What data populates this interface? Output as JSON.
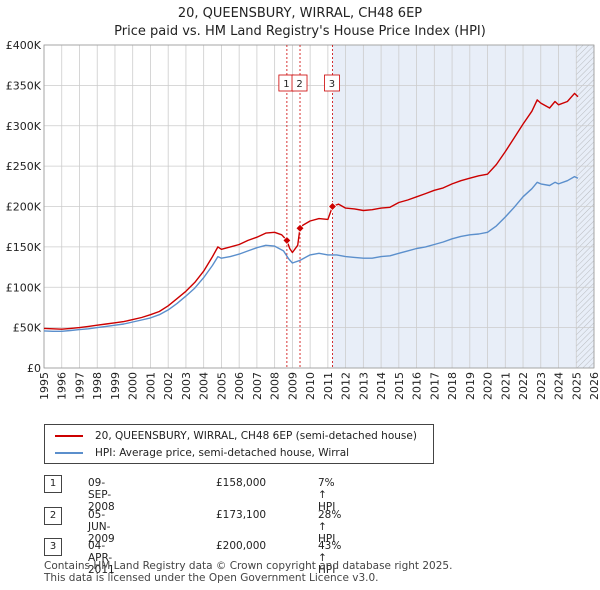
{
  "title_line1": "20, QUEENSBURY, WIRRAL, CH48 6EP",
  "title_line2": "Price paid vs. HM Land Registry's House Price Index (HPI)",
  "colors": {
    "property": "#cc0000",
    "hpi": "#5b8fcc",
    "grid": "#cccccc",
    "shade": "#e8eef8",
    "marker_line": "#cc0000",
    "hatch": "#999999"
  },
  "chart_data": {
    "type": "line",
    "title": "Price paid vs. HM Land Registry's House Price Index (HPI)",
    "xlim": [
      1995,
      2026
    ],
    "ylim": [
      0,
      400000
    ],
    "yticks": [
      {
        "value": 0,
        "label": "£0"
      },
      {
        "value": 50000,
        "label": "£50K"
      },
      {
        "value": 100000,
        "label": "£100K"
      },
      {
        "value": 150000,
        "label": "£150K"
      },
      {
        "value": 200000,
        "label": "£200K"
      },
      {
        "value": 250000,
        "label": "£250K"
      },
      {
        "value": 300000,
        "label": "£300K"
      },
      {
        "value": 350000,
        "label": "£350K"
      },
      {
        "value": 400000,
        "label": "£400K"
      }
    ],
    "xticks": [
      "1995",
      "1996",
      "1997",
      "1998",
      "1999",
      "2000",
      "2001",
      "2002",
      "2003",
      "2004",
      "2005",
      "2006",
      "2007",
      "2008",
      "2009",
      "2010",
      "2011",
      "2012",
      "2013",
      "2014",
      "2015",
      "2016",
      "2017",
      "2018",
      "2019",
      "2020",
      "2021",
      "2022",
      "2023",
      "2024",
      "2025",
      "2026"
    ],
    "shaded_region": [
      2011.26,
      2026
    ],
    "hatched_from": 2025.0,
    "series": [
      {
        "name": "20, QUEENSBURY, WIRRAL, CH48 6EP (semi-detached house)",
        "color": "#cc0000",
        "points": [
          [
            1995.0,
            49000
          ],
          [
            1995.5,
            48500
          ],
          [
            1996.0,
            48000
          ],
          [
            1996.5,
            49000
          ],
          [
            1997.0,
            50000
          ],
          [
            1997.5,
            51500
          ],
          [
            1998.0,
            53000
          ],
          [
            1998.5,
            54500
          ],
          [
            1999.0,
            56000
          ],
          [
            1999.5,
            57500
          ],
          [
            2000.0,
            60000
          ],
          [
            2000.5,
            62500
          ],
          [
            2001.0,
            66000
          ],
          [
            2001.5,
            70000
          ],
          [
            2002.0,
            77000
          ],
          [
            2002.5,
            86000
          ],
          [
            2003.0,
            95000
          ],
          [
            2003.5,
            106000
          ],
          [
            2004.0,
            120000
          ],
          [
            2004.5,
            138000
          ],
          [
            2004.8,
            150000
          ],
          [
            2005.0,
            147000
          ],
          [
            2005.5,
            150000
          ],
          [
            2006.0,
            153000
          ],
          [
            2006.5,
            158000
          ],
          [
            2007.0,
            162000
          ],
          [
            2007.5,
            167000
          ],
          [
            2008.0,
            168000
          ],
          [
            2008.4,
            165000
          ],
          [
            2008.69,
            158000
          ],
          [
            2008.85,
            148000
          ],
          [
            2009.0,
            143000
          ],
          [
            2009.3,
            152000
          ],
          [
            2009.43,
            173100
          ],
          [
            2009.6,
            177000
          ],
          [
            2010.0,
            182000
          ],
          [
            2010.5,
            185000
          ],
          [
            2011.0,
            184000
          ],
          [
            2011.26,
            200000
          ],
          [
            2011.6,
            203000
          ],
          [
            2012.0,
            198000
          ],
          [
            2012.5,
            197000
          ],
          [
            2013.0,
            195000
          ],
          [
            2013.5,
            196000
          ],
          [
            2014.0,
            198000
          ],
          [
            2014.5,
            199000
          ],
          [
            2015.0,
            205000
          ],
          [
            2015.5,
            208000
          ],
          [
            2016.0,
            212000
          ],
          [
            2016.5,
            216000
          ],
          [
            2017.0,
            220000
          ],
          [
            2017.5,
            223000
          ],
          [
            2018.0,
            228000
          ],
          [
            2018.5,
            232000
          ],
          [
            2019.0,
            235000
          ],
          [
            2019.5,
            238000
          ],
          [
            2020.0,
            240000
          ],
          [
            2020.5,
            252000
          ],
          [
            2021.0,
            268000
          ],
          [
            2021.5,
            285000
          ],
          [
            2022.0,
            302000
          ],
          [
            2022.5,
            318000
          ],
          [
            2022.8,
            332000
          ],
          [
            2023.0,
            328000
          ],
          [
            2023.5,
            322000
          ],
          [
            2023.8,
            330000
          ],
          [
            2024.0,
            326000
          ],
          [
            2024.5,
            330000
          ],
          [
            2024.9,
            340000
          ],
          [
            2025.1,
            336000
          ]
        ]
      },
      {
        "name": "HPI: Average price, semi-detached house, Wirral",
        "color": "#5b8fcc",
        "points": [
          [
            1995.0,
            46000
          ],
          [
            1995.5,
            45500
          ],
          [
            1996.0,
            45500
          ],
          [
            1996.5,
            46500
          ],
          [
            1997.0,
            47500
          ],
          [
            1997.5,
            48500
          ],
          [
            1998.0,
            50000
          ],
          [
            1998.5,
            51500
          ],
          [
            1999.0,
            53000
          ],
          [
            1999.5,
            54500
          ],
          [
            2000.0,
            57000
          ],
          [
            2000.5,
            59500
          ],
          [
            2001.0,
            62000
          ],
          [
            2001.5,
            66000
          ],
          [
            2002.0,
            72000
          ],
          [
            2002.5,
            80000
          ],
          [
            2003.0,
            89000
          ],
          [
            2003.5,
            99000
          ],
          [
            2004.0,
            112000
          ],
          [
            2004.5,
            127000
          ],
          [
            2004.8,
            138000
          ],
          [
            2005.0,
            136000
          ],
          [
            2005.5,
            138000
          ],
          [
            2006.0,
            141000
          ],
          [
            2006.5,
            145000
          ],
          [
            2007.0,
            149000
          ],
          [
            2007.5,
            152000
          ],
          [
            2008.0,
            151000
          ],
          [
            2008.5,
            145000
          ],
          [
            2008.8,
            135000
          ],
          [
            2009.0,
            130000
          ],
          [
            2009.4,
            133000
          ],
          [
            2010.0,
            140000
          ],
          [
            2010.5,
            142000
          ],
          [
            2011.0,
            140000
          ],
          [
            2011.5,
            140000
          ],
          [
            2012.0,
            138000
          ],
          [
            2012.5,
            137000
          ],
          [
            2013.0,
            136000
          ],
          [
            2013.5,
            136000
          ],
          [
            2014.0,
            138000
          ],
          [
            2014.5,
            139000
          ],
          [
            2015.0,
            142000
          ],
          [
            2015.5,
            145000
          ],
          [
            2016.0,
            148000
          ],
          [
            2016.5,
            150000
          ],
          [
            2017.0,
            153000
          ],
          [
            2017.5,
            156000
          ],
          [
            2018.0,
            160000
          ],
          [
            2018.5,
            163000
          ],
          [
            2019.0,
            165000
          ],
          [
            2019.5,
            166000
          ],
          [
            2020.0,
            168000
          ],
          [
            2020.5,
            176000
          ],
          [
            2021.0,
            187000
          ],
          [
            2021.5,
            199000
          ],
          [
            2022.0,
            212000
          ],
          [
            2022.5,
            222000
          ],
          [
            2022.8,
            230000
          ],
          [
            2023.0,
            228000
          ],
          [
            2023.5,
            226000
          ],
          [
            2023.8,
            230000
          ],
          [
            2024.0,
            228000
          ],
          [
            2024.5,
            232000
          ],
          [
            2024.9,
            237000
          ],
          [
            2025.1,
            235000
          ]
        ]
      }
    ],
    "sales": [
      {
        "label": "1",
        "x": 2008.69,
        "value": 158000
      },
      {
        "label": "2",
        "x": 2009.43,
        "value": 173100
      },
      {
        "label": "3",
        "x": 2011.26,
        "value": 200000
      }
    ]
  },
  "legend": {
    "property_label": "20, QUEENSBURY, WIRRAL, CH48 6EP (semi-detached house)",
    "hpi_label": "HPI: Average price, semi-detached house, Wirral"
  },
  "transactions": [
    {
      "num": "1",
      "date": "09-SEP-2008",
      "price": "£158,000",
      "hpi": "7% ↑ HPI"
    },
    {
      "num": "2",
      "date": "05-JUN-2009",
      "price": "£173,100",
      "hpi": "28% ↑ HPI"
    },
    {
      "num": "3",
      "date": "04-APR-2011",
      "price": "£200,000",
      "hpi": "43% ↑ HPI"
    }
  ],
  "footer": {
    "line1": "Contains HM Land Registry data © Crown copyright and database right 2025.",
    "line2": "This data is licensed under the Open Government Licence v3.0."
  }
}
